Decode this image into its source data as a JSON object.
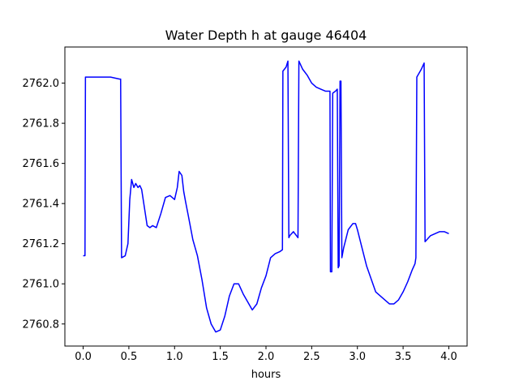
{
  "chart_data": {
    "type": "line",
    "title": "Water Depth h at gauge 46404",
    "xlabel": "hours",
    "ylabel": "",
    "xlim": [
      -0.2,
      4.2
    ],
    "ylim": [
      2760.69,
      2762.18
    ],
    "xticks": [
      0.0,
      0.5,
      1.0,
      1.5,
      2.0,
      2.5,
      3.0,
      3.5,
      4.0
    ],
    "xtick_labels": [
      "0.0",
      "0.5",
      "1.0",
      "1.5",
      "2.0",
      "2.5",
      "3.0",
      "3.5",
      "4.0"
    ],
    "yticks": [
      2760.8,
      2761.0,
      2761.2,
      2761.4,
      2761.6,
      2761.8,
      2762.0
    ],
    "ytick_labels": [
      "2760.8",
      "2761.0",
      "2761.2",
      "2761.4",
      "2761.6",
      "2761.8",
      "2762.0"
    ],
    "grid": false,
    "series": [
      {
        "name": "",
        "color": "#0000ff",
        "x": [
          0.0,
          0.02,
          0.025,
          0.2,
          0.3,
          0.4,
          0.41,
          0.42,
          0.46,
          0.49,
          0.51,
          0.53,
          0.555,
          0.575,
          0.6,
          0.62,
          0.64,
          0.67,
          0.7,
          0.73,
          0.76,
          0.8,
          0.85,
          0.9,
          0.95,
          1.0,
          1.03,
          1.05,
          1.08,
          1.1,
          1.12,
          1.15,
          1.2,
          1.25,
          1.3,
          1.35,
          1.4,
          1.45,
          1.5,
          1.55,
          1.6,
          1.65,
          1.7,
          1.75,
          1.8,
          1.85,
          1.9,
          1.95,
          2.0,
          2.05,
          2.1,
          2.15,
          2.18,
          2.185,
          2.22,
          2.24,
          2.25,
          2.26,
          2.3,
          2.35,
          2.36,
          2.37,
          2.4,
          2.45,
          2.5,
          2.55,
          2.6,
          2.65,
          2.7,
          2.705,
          2.72,
          2.73,
          2.76,
          2.78,
          2.79,
          2.8,
          2.81,
          2.82,
          2.83,
          2.85,
          2.9,
          2.95,
          2.98,
          3.0,
          3.05,
          3.1,
          3.2,
          3.3,
          3.35,
          3.4,
          3.45,
          3.5,
          3.55,
          3.6,
          3.63,
          3.64,
          3.65,
          3.7,
          3.73,
          3.74,
          3.8,
          3.85,
          3.9,
          3.95,
          4.0
        ],
        "y": [
          2761.14,
          2761.14,
          2762.03,
          2762.03,
          2762.03,
          2762.02,
          2762.02,
          2761.13,
          2761.14,
          2761.2,
          2761.42,
          2761.52,
          2761.48,
          2761.5,
          2761.48,
          2761.49,
          2761.47,
          2761.38,
          2761.29,
          2761.28,
          2761.29,
          2761.28,
          2761.35,
          2761.43,
          2761.44,
          2761.42,
          2761.48,
          2761.56,
          2761.54,
          2761.46,
          2761.41,
          2761.34,
          2761.22,
          2761.14,
          2761.02,
          2760.88,
          2760.8,
          2760.76,
          2760.77,
          2760.84,
          2760.94,
          2761.0,
          2761.0,
          2760.95,
          2760.91,
          2760.87,
          2760.9,
          2760.98,
          2761.04,
          2761.13,
          2761.15,
          2761.16,
          2761.17,
          2762.06,
          2762.08,
          2762.11,
          2761.23,
          2761.24,
          2761.26,
          2761.23,
          2762.11,
          2762.1,
          2762.07,
          2762.04,
          2762.0,
          2761.98,
          2761.97,
          2761.96,
          2761.96,
          2761.06,
          2761.06,
          2761.95,
          2761.96,
          2761.97,
          2761.08,
          2761.09,
          2762.01,
          2762.01,
          2761.13,
          2761.18,
          2761.27,
          2761.3,
          2761.3,
          2761.27,
          2761.18,
          2761.09,
          2760.96,
          2760.92,
          2760.9,
          2760.9,
          2760.92,
          2760.96,
          2761.01,
          2761.07,
          2761.1,
          2761.13,
          2762.03,
          2762.07,
          2762.1,
          2761.21,
          2761.24,
          2761.25,
          2761.26,
          2761.26,
          2761.25
        ]
      }
    ]
  }
}
